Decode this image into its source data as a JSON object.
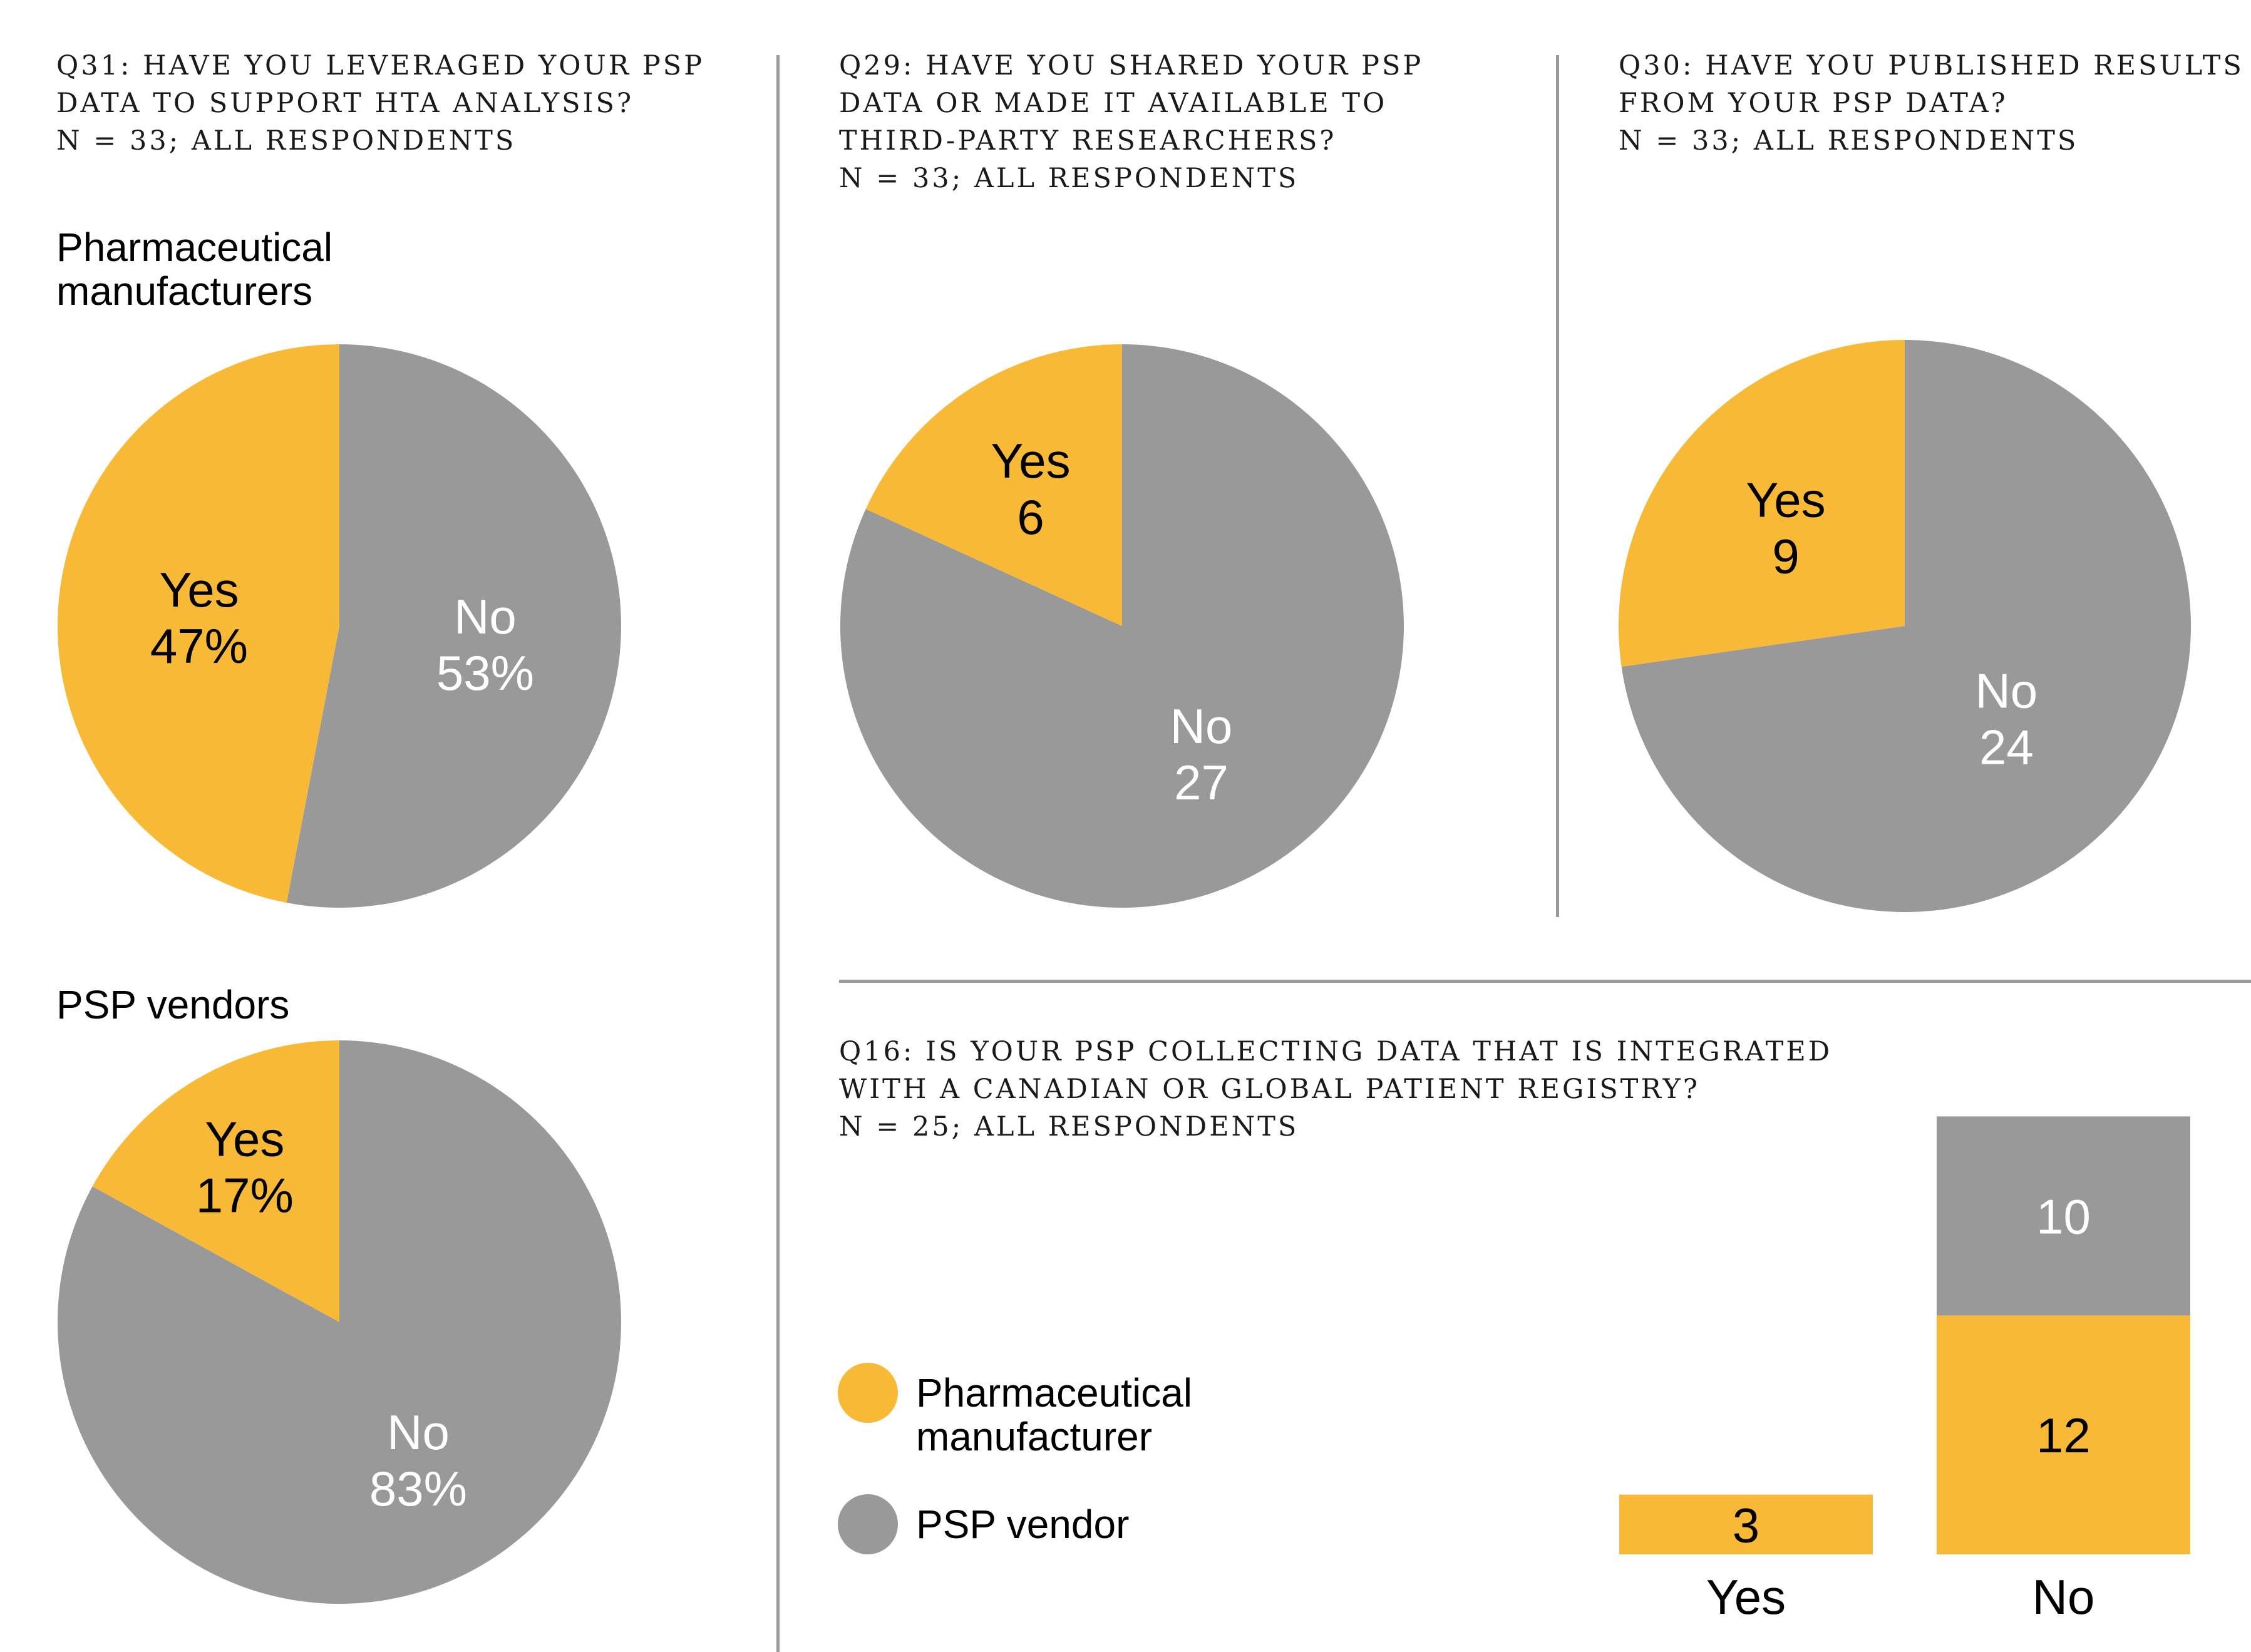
{
  "colors": {
    "yes": "#f8ba36",
    "no": "#999999",
    "label_dark": "#000000",
    "label_light": "#ffffff"
  },
  "q31": {
    "lines": [
      "Q31: HAVE YOU LEVERAGED YOUR PSP",
      "DATA TO SUPPORT HTA ANALYSIS?",
      "N = 33; ALL RESPONDENTS"
    ],
    "group1": [
      "Pharmaceutical",
      "manufacturers"
    ],
    "group2": "PSP vendors"
  },
  "q29": {
    "lines": [
      "Q29: HAVE YOU SHARED YOUR PSP",
      "DATA OR MADE IT AVAILABLE TO",
      "THIRD-PARTY RESEARCHERS?",
      "N = 33; ALL RESPONDENTS"
    ]
  },
  "q30": {
    "lines": [
      "Q30: HAVE YOU PUBLISHED RESULTS",
      "FROM YOUR PSP DATA?",
      "N = 33; ALL RESPONDENTS"
    ]
  },
  "q16": {
    "lines": [
      "Q16: IS YOUR PSP COLLECTING DATA THAT IS INTEGRATED",
      "WITH A CANADIAN OR GLOBAL PATIENT REGISTRY?",
      "N = 25; ALL RESPONDENTS"
    ]
  },
  "legend": {
    "manufacturer": [
      "Pharmaceutical",
      "manufacturer"
    ],
    "vendor": "PSP vendor"
  },
  "chart_data": [
    {
      "type": "pie",
      "id": "q31-manufacturers",
      "slices": [
        {
          "label": "Yes",
          "value": 47,
          "display": "47%"
        },
        {
          "label": "No",
          "value": 53,
          "display": "53%"
        }
      ]
    },
    {
      "type": "pie",
      "id": "q31-vendors",
      "slices": [
        {
          "label": "Yes",
          "value": 17,
          "display": "17%"
        },
        {
          "label": "No",
          "value": 83,
          "display": "83%"
        }
      ]
    },
    {
      "type": "pie",
      "id": "q29",
      "slices": [
        {
          "label": "Yes",
          "value": 6,
          "display": "6"
        },
        {
          "label": "No",
          "value": 27,
          "display": "27"
        }
      ]
    },
    {
      "type": "pie",
      "id": "q30",
      "slices": [
        {
          "label": "Yes",
          "value": 9,
          "display": "9"
        },
        {
          "label": "No",
          "value": 24,
          "display": "24"
        }
      ]
    },
    {
      "type": "bar",
      "id": "q16",
      "stacked": true,
      "categories": [
        "Yes",
        "No"
      ],
      "series": [
        {
          "name": "Pharmaceutical manufacturer",
          "values": [
            3,
            12
          ]
        },
        {
          "name": "PSP vendor",
          "values": [
            0,
            10
          ]
        }
      ]
    }
  ]
}
